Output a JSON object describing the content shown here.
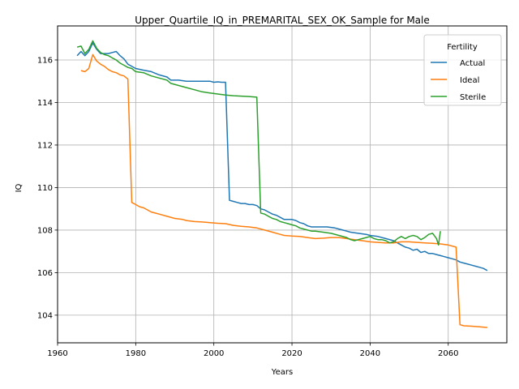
{
  "chart_data": {
    "type": "line",
    "title": "Upper_Quartile_IQ_in_PREMARITAL_SEX_OK_Sample for Male",
    "xlabel": "Years",
    "ylabel": "IQ",
    "xlim": [
      1960,
      2075
    ],
    "ylim": [
      102.7,
      117.6
    ],
    "xticks": [
      1960,
      1980,
      2000,
      2020,
      2040,
      2060
    ],
    "yticks": [
      104,
      106,
      108,
      110,
      112,
      114,
      116
    ],
    "grid": true,
    "legend": {
      "title": "Fertility",
      "position": "top-right"
    },
    "series": [
      {
        "name": "Actual",
        "color": "#1f77b4",
        "points": [
          [
            1965,
            116.2
          ],
          [
            1966,
            116.4
          ],
          [
            1967,
            116.2
          ],
          [
            1968,
            116.4
          ],
          [
            1969,
            116.8
          ],
          [
            1970,
            116.5
          ],
          [
            1971,
            116.3
          ],
          [
            1972,
            116.3
          ],
          [
            1973,
            116.3
          ],
          [
            1974,
            116.35
          ],
          [
            1975,
            116.4
          ],
          [
            1976,
            116.2
          ],
          [
            1977,
            116.05
          ],
          [
            1978,
            115.8
          ],
          [
            1979,
            115.7
          ],
          [
            1980,
            115.6
          ],
          [
            1982,
            115.52
          ],
          [
            1984,
            115.45
          ],
          [
            1986,
            115.3
          ],
          [
            1988,
            115.2
          ],
          [
            1989,
            115.05
          ],
          [
            1991,
            115.05
          ],
          [
            1993,
            115.0
          ],
          [
            1995,
            115.0
          ],
          [
            1997,
            115.0
          ],
          [
            1999,
            115.0
          ],
          [
            2000,
            114.95
          ],
          [
            2001,
            114.97
          ],
          [
            2002,
            114.95
          ],
          [
            2003,
            114.95
          ],
          [
            2004,
            109.4
          ],
          [
            2005,
            109.35
          ],
          [
            2006,
            109.3
          ],
          [
            2007,
            109.25
          ],
          [
            2008,
            109.25
          ],
          [
            2009,
            109.2
          ],
          [
            2010,
            109.2
          ],
          [
            2011,
            109.15
          ],
          [
            2012,
            109.0
          ],
          [
            2013,
            108.95
          ],
          [
            2014,
            108.85
          ],
          [
            2015,
            108.75
          ],
          [
            2016,
            108.7
          ],
          [
            2017,
            108.6
          ],
          [
            2018,
            108.5
          ],
          [
            2020,
            108.5
          ],
          [
            2021,
            108.45
          ],
          [
            2022,
            108.35
          ],
          [
            2023,
            108.3
          ],
          [
            2024,
            108.2
          ],
          [
            2025,
            108.15
          ],
          [
            2027,
            108.15
          ],
          [
            2029,
            108.15
          ],
          [
            2031,
            108.1
          ],
          [
            2032,
            108.05
          ],
          [
            2033,
            108.0
          ],
          [
            2034,
            107.95
          ],
          [
            2035,
            107.9
          ],
          [
            2037,
            107.85
          ],
          [
            2039,
            107.8
          ],
          [
            2040,
            107.75
          ],
          [
            2042,
            107.7
          ],
          [
            2044,
            107.6
          ],
          [
            2046,
            107.5
          ],
          [
            2047,
            107.4
          ],
          [
            2048,
            107.3
          ],
          [
            2049,
            107.2
          ],
          [
            2050,
            107.15
          ],
          [
            2051,
            107.05
          ],
          [
            2052,
            107.1
          ],
          [
            2053,
            106.95
          ],
          [
            2054,
            107.0
          ],
          [
            2055,
            106.9
          ],
          [
            2056,
            106.9
          ],
          [
            2057,
            106.85
          ],
          [
            2058,
            106.8
          ],
          [
            2059,
            106.75
          ],
          [
            2060,
            106.7
          ],
          [
            2061,
            106.65
          ],
          [
            2062,
            106.6
          ],
          [
            2063,
            106.5
          ],
          [
            2064,
            106.45
          ],
          [
            2065,
            106.4
          ],
          [
            2066,
            106.35
          ],
          [
            2067,
            106.3
          ],
          [
            2068,
            106.25
          ],
          [
            2069,
            106.2
          ],
          [
            2070,
            106.1
          ]
        ]
      },
      {
        "name": "Ideal",
        "color": "#ff7f0e",
        "points": [
          [
            1966,
            115.5
          ],
          [
            1967,
            115.45
          ],
          [
            1968,
            115.6
          ],
          [
            1969,
            116.25
          ],
          [
            1970,
            115.95
          ],
          [
            1971,
            115.8
          ],
          [
            1972,
            115.7
          ],
          [
            1973,
            115.55
          ],
          [
            1974,
            115.45
          ],
          [
            1975,
            115.4
          ],
          [
            1976,
            115.3
          ],
          [
            1977,
            115.25
          ],
          [
            1978,
            115.1
          ],
          [
            1979,
            109.3
          ],
          [
            1980,
            109.2
          ],
          [
            1981,
            109.1
          ],
          [
            1982,
            109.05
          ],
          [
            1983,
            108.95
          ],
          [
            1984,
            108.85
          ],
          [
            1985,
            108.8
          ],
          [
            1986,
            108.75
          ],
          [
            1988,
            108.65
          ],
          [
            1990,
            108.55
          ],
          [
            1992,
            108.5
          ],
          [
            1993,
            108.45
          ],
          [
            1995,
            108.4
          ],
          [
            1997,
            108.38
          ],
          [
            1999,
            108.35
          ],
          [
            2001,
            108.32
          ],
          [
            2003,
            108.3
          ],
          [
            2005,
            108.22
          ],
          [
            2007,
            108.18
          ],
          [
            2009,
            108.15
          ],
          [
            2011,
            108.1
          ],
          [
            2013,
            108.0
          ],
          [
            2015,
            107.9
          ],
          [
            2017,
            107.8
          ],
          [
            2018,
            107.75
          ],
          [
            2020,
            107.72
          ],
          [
            2022,
            107.7
          ],
          [
            2024,
            107.65
          ],
          [
            2026,
            107.6
          ],
          [
            2028,
            107.62
          ],
          [
            2030,
            107.65
          ],
          [
            2032,
            107.65
          ],
          [
            2034,
            107.6
          ],
          [
            2036,
            107.55
          ],
          [
            2038,
            107.5
          ],
          [
            2040,
            107.45
          ],
          [
            2042,
            107.42
          ],
          [
            2044,
            107.4
          ],
          [
            2046,
            107.4
          ],
          [
            2048,
            107.45
          ],
          [
            2050,
            107.45
          ],
          [
            2052,
            107.42
          ],
          [
            2054,
            107.4
          ],
          [
            2056,
            107.38
          ],
          [
            2058,
            107.35
          ],
          [
            2060,
            107.3
          ],
          [
            2062,
            107.2
          ],
          [
            2063,
            103.55
          ],
          [
            2064,
            103.5
          ],
          [
            2066,
            103.48
          ],
          [
            2068,
            103.45
          ],
          [
            2070,
            103.42
          ]
        ]
      },
      {
        "name": "Sterile",
        "color": "#2ca02c",
        "points": [
          [
            1965,
            116.6
          ],
          [
            1966,
            116.65
          ],
          [
            1967,
            116.3
          ],
          [
            1968,
            116.5
          ],
          [
            1969,
            116.9
          ],
          [
            1970,
            116.55
          ],
          [
            1971,
            116.35
          ],
          [
            1972,
            116.25
          ],
          [
            1973,
            116.2
          ],
          [
            1974,
            116.1
          ],
          [
            1975,
            116.0
          ],
          [
            1976,
            115.85
          ],
          [
            1977,
            115.75
          ],
          [
            1978,
            115.65
          ],
          [
            1979,
            115.6
          ],
          [
            1980,
            115.45
          ],
          [
            1982,
            115.4
          ],
          [
            1984,
            115.25
          ],
          [
            1986,
            115.15
          ],
          [
            1988,
            115.05
          ],
          [
            1989,
            114.9
          ],
          [
            1991,
            114.8
          ],
          [
            1993,
            114.7
          ],
          [
            1995,
            114.6
          ],
          [
            1997,
            114.5
          ],
          [
            1999,
            114.45
          ],
          [
            2001,
            114.4
          ],
          [
            2003,
            114.35
          ],
          [
            2005,
            114.32
          ],
          [
            2007,
            114.3
          ],
          [
            2009,
            114.28
          ],
          [
            2011,
            114.25
          ],
          [
            2012,
            108.8
          ],
          [
            2013,
            108.75
          ],
          [
            2014,
            108.65
          ],
          [
            2015,
            108.55
          ],
          [
            2016,
            108.5
          ],
          [
            2017,
            108.4
          ],
          [
            2018,
            108.35
          ],
          [
            2019,
            108.3
          ],
          [
            2020,
            108.25
          ],
          [
            2021,
            108.2
          ],
          [
            2022,
            108.1
          ],
          [
            2023,
            108.05
          ],
          [
            2024,
            108.0
          ],
          [
            2025,
            107.95
          ],
          [
            2026,
            107.95
          ],
          [
            2028,
            107.9
          ],
          [
            2030,
            107.85
          ],
          [
            2032,
            107.75
          ],
          [
            2034,
            107.65
          ],
          [
            2035,
            107.55
          ],
          [
            2036,
            107.5
          ],
          [
            2037,
            107.55
          ],
          [
            2038,
            107.6
          ],
          [
            2039,
            107.65
          ],
          [
            2040,
            107.7
          ],
          [
            2041,
            107.6
          ],
          [
            2042,
            107.55
          ],
          [
            2043,
            107.55
          ],
          [
            2044,
            107.5
          ],
          [
            2045,
            107.4
          ],
          [
            2046,
            107.45
          ],
          [
            2047,
            107.6
          ],
          [
            2048,
            107.7
          ],
          [
            2049,
            107.6
          ],
          [
            2050,
            107.7
          ],
          [
            2051,
            107.75
          ],
          [
            2052,
            107.7
          ],
          [
            2053,
            107.55
          ],
          [
            2054,
            107.65
          ],
          [
            2055,
            107.8
          ],
          [
            2056,
            107.85
          ],
          [
            2057,
            107.6
          ],
          [
            2057.5,
            107.3
          ],
          [
            2058,
            107.95
          ]
        ]
      }
    ]
  }
}
